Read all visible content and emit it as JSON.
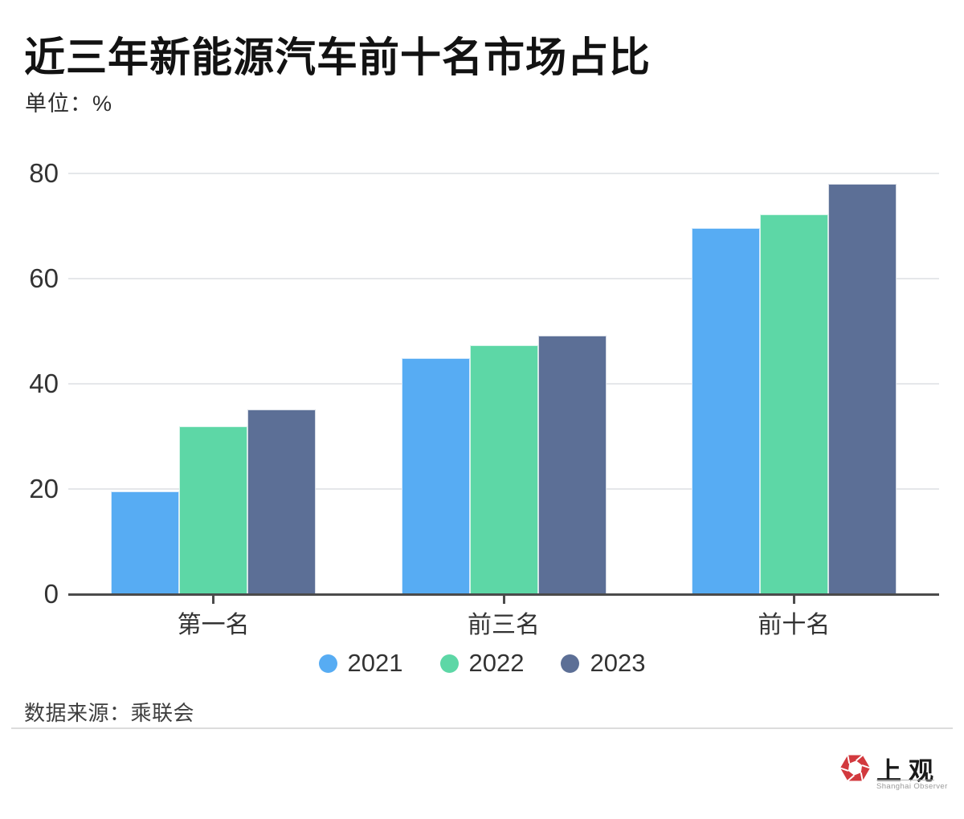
{
  "title": "近三年新能源汽车前十名市场占比",
  "unit_label": "单位：%",
  "source_label": "数据来源：乘联会",
  "logo": {
    "cn": "上观",
    "en": "Shanghai Observer"
  },
  "colors": {
    "series_2021": "#57ACF3",
    "series_2022": "#5DD7A6",
    "series_2023": "#5C6F96",
    "axis": "#4b4b4b",
    "grid": "#e5e7ea",
    "text": "#333333",
    "logo_red": "#D2393E"
  },
  "chart_data": {
    "type": "bar",
    "title": "近三年新能源汽车前十名市场占比",
    "subtitle_unit": "单位：%",
    "categories": [
      "第一名",
      "前三名",
      "前十名"
    ],
    "series": [
      {
        "name": "2021",
        "color": "#57ACF3",
        "values": [
          19.5,
          44.8,
          69.6
        ]
      },
      {
        "name": "2022",
        "color": "#5DD7A6",
        "values": [
          31.8,
          47.3,
          72.2
        ]
      },
      {
        "name": "2023",
        "color": "#5C6F96",
        "values": [
          35.0,
          49.1,
          78.0
        ]
      }
    ],
    "ylabel": "",
    "xlabel": "",
    "ylim": [
      0,
      80
    ],
    "yticks": [
      0,
      20,
      40,
      60,
      80
    ],
    "grid": true,
    "legend_position": "bottom",
    "source": "数据来源：乘联会"
  }
}
